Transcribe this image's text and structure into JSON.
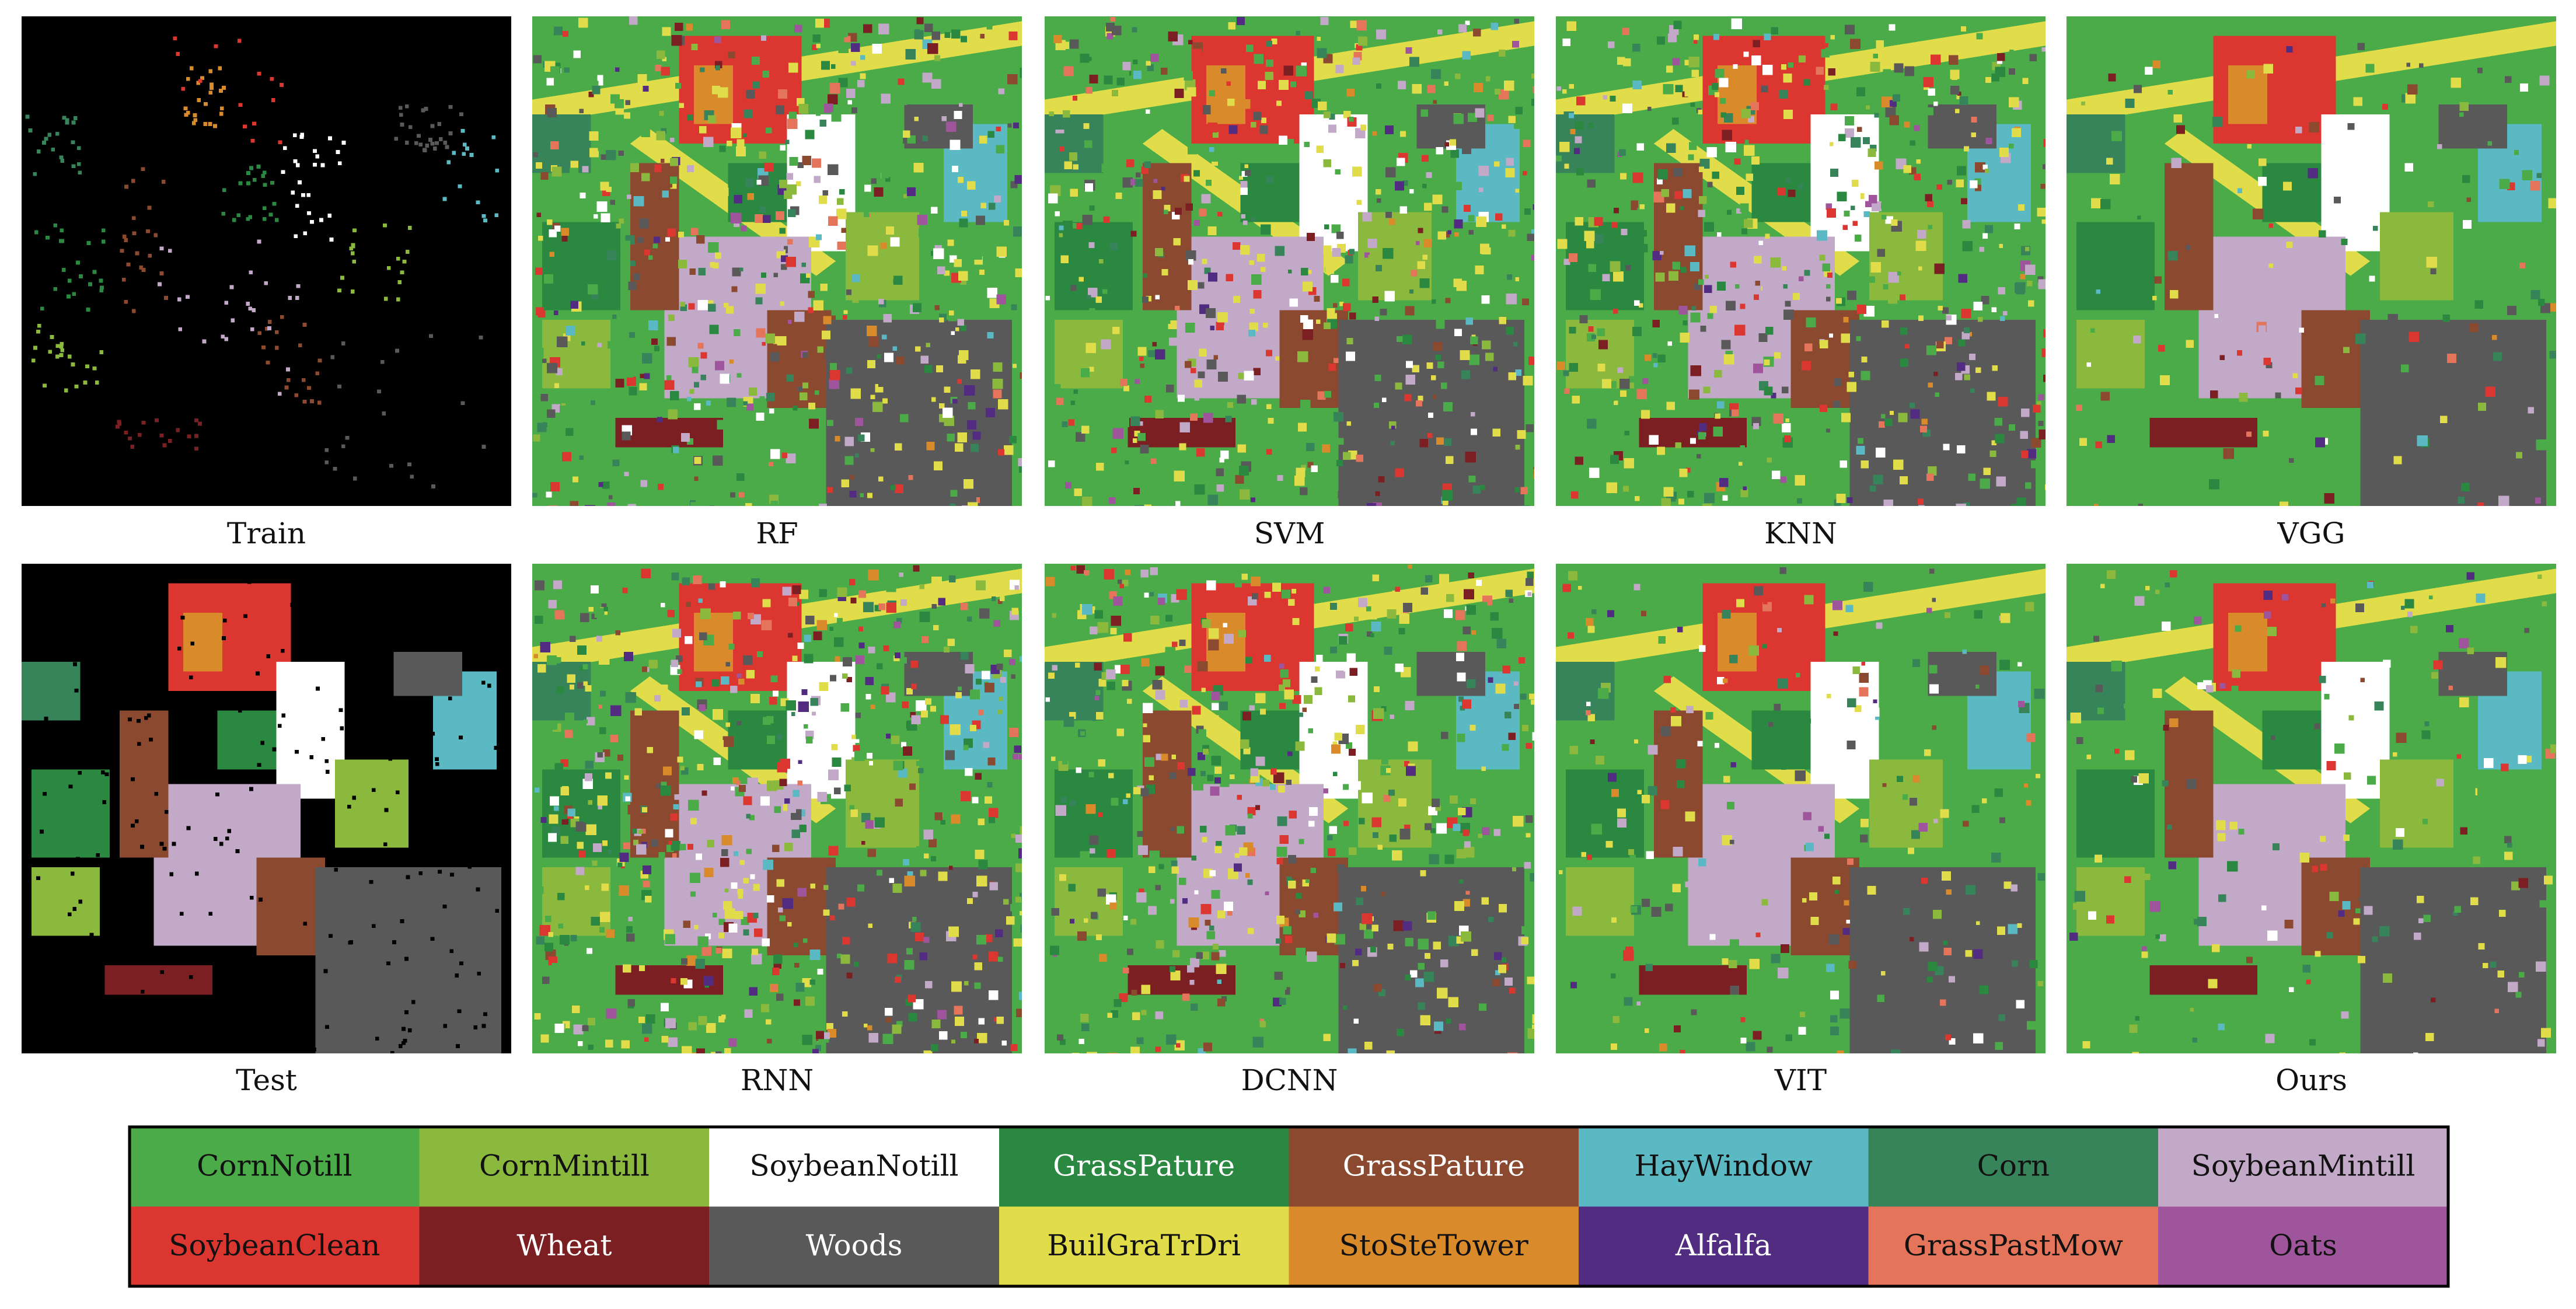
{
  "panels": [
    {
      "label": "Train"
    },
    {
      "label": "RF"
    },
    {
      "label": "SVM"
    },
    {
      "label": "KNN"
    },
    {
      "label": "VGG"
    },
    {
      "label": "Test"
    },
    {
      "label": "RNN"
    },
    {
      "label": "DCNN"
    },
    {
      "label": "VIT"
    },
    {
      "label": "Ours"
    }
  ],
  "legend": [
    {
      "label": "CornNotill",
      "color": "#4aab48"
    },
    {
      "label": "CornMintill",
      "color": "#8bb93e"
    },
    {
      "label": "SoybeanNotill",
      "color": "#ffffff"
    },
    {
      "label": "GrassPature",
      "color": "#2a8841"
    },
    {
      "label": "GrassPature",
      "color": "#8b4a2f"
    },
    {
      "label": "HayWindow",
      "color": "#5bb9c3"
    },
    {
      "label": "Corn",
      "color": "#37845a"
    },
    {
      "label": "SoybeanMintill",
      "color": "#c3a9c8"
    },
    {
      "label": "SoybeanClean",
      "color": "#dc3630"
    },
    {
      "label": "Wheat",
      "color": "#7b1f22"
    },
    {
      "label": "Woods",
      "color": "#595959"
    },
    {
      "label": "BuilGraTrDri",
      "color": "#e0dc4a"
    },
    {
      "label": "StoSteTower",
      "color": "#d98b2c"
    },
    {
      "label": "Alfalfa",
      "color": "#522c81"
    },
    {
      "label": "GrassPastMow",
      "color": "#e4745a"
    },
    {
      "label": "Oats",
      "color": "#9f559b"
    }
  ]
}
